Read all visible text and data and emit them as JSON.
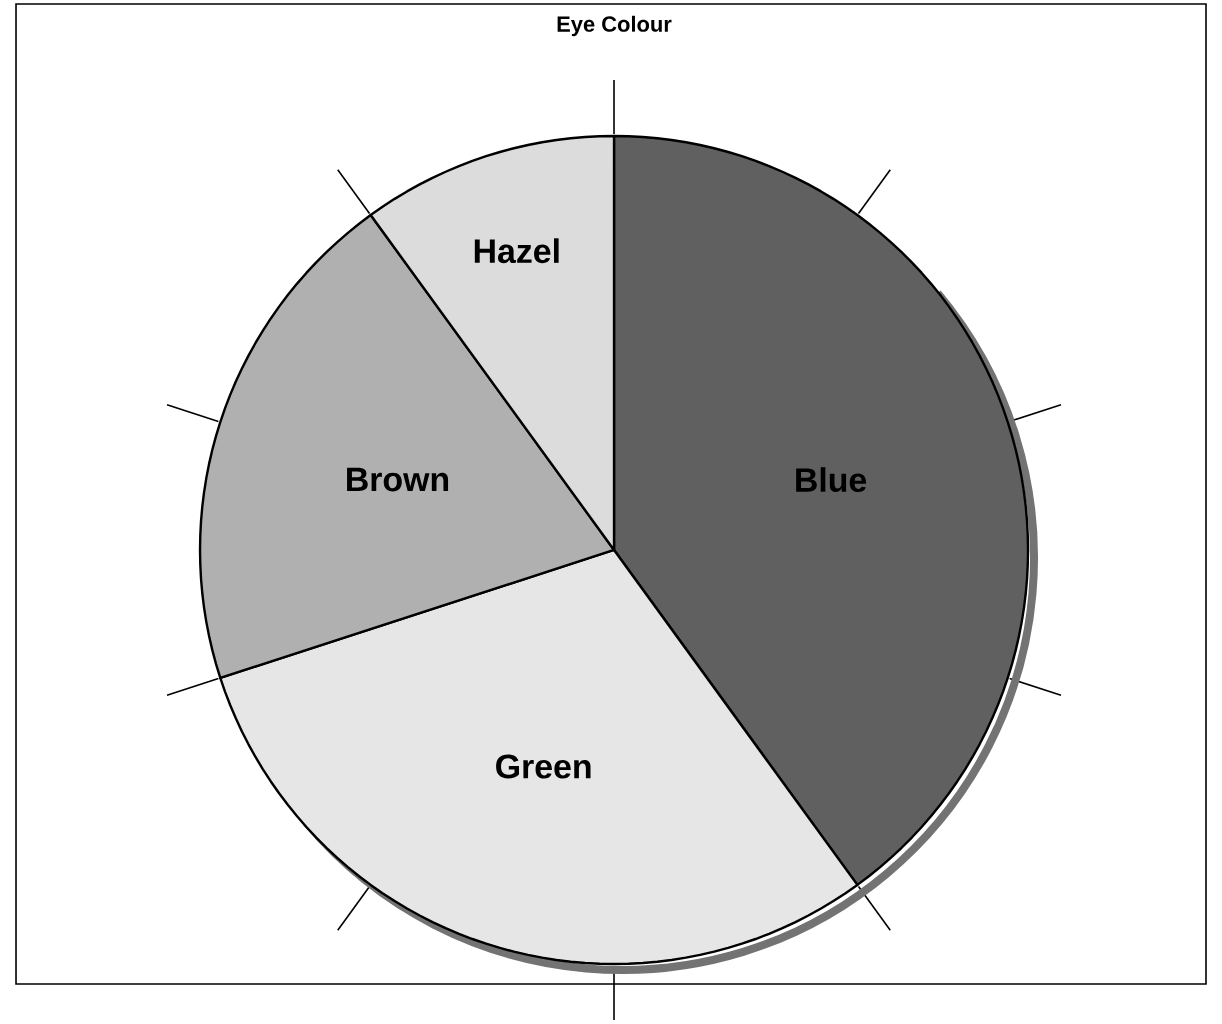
{
  "chart_data": {
    "type": "pie",
    "title": "Eye Colour",
    "categories": [
      "Blue",
      "Green",
      "Brown",
      "Hazel"
    ],
    "values": [
      40,
      30,
      20,
      10
    ],
    "colors": [
      "#606060",
      "#e6e6e6",
      "#b0b0b0",
      "#dcdcdc"
    ]
  }
}
